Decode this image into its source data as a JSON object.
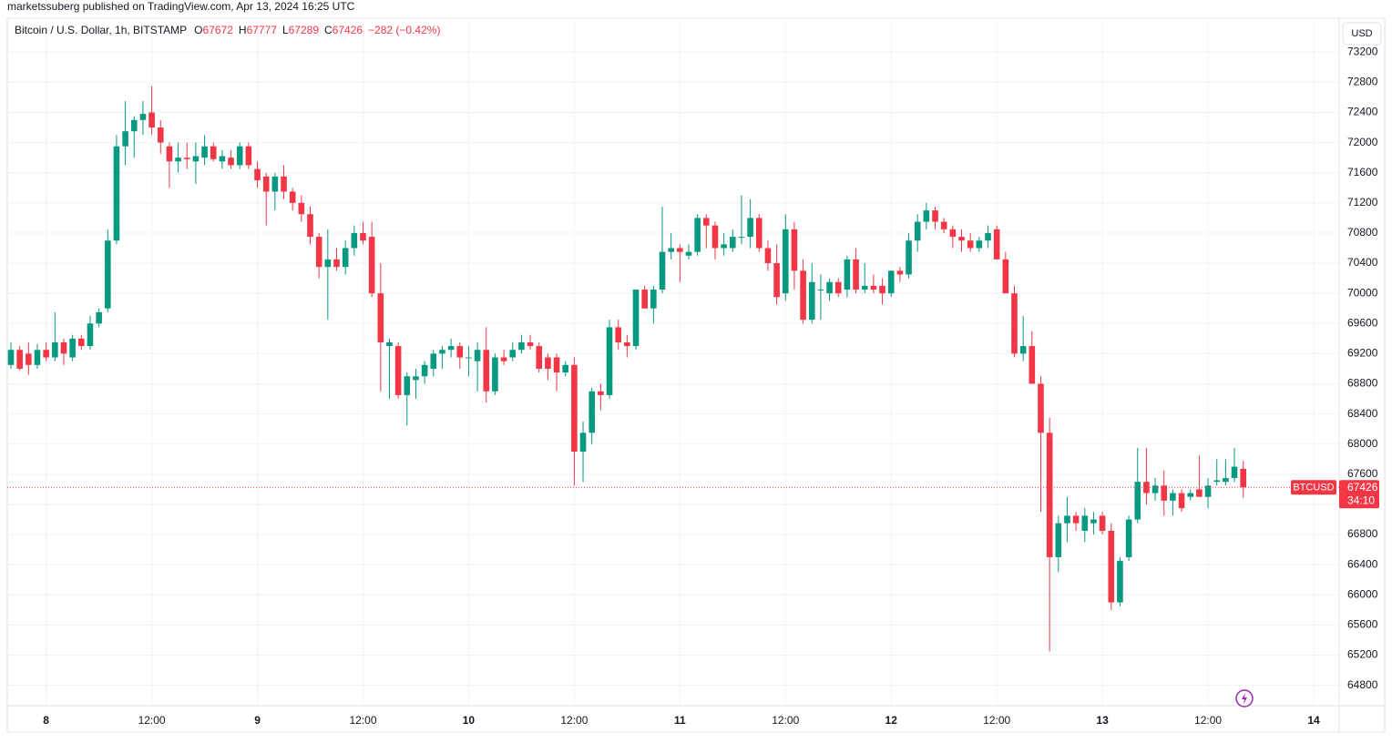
{
  "header": {
    "text": "marketssuberg published on TradingView.com, Apr 13, 2024 16:25 UTC"
  },
  "chart_data": {
    "type": "candlestick",
    "title": "Bitcoin / U.S. Dollar, 1h, BITSTAMP",
    "ohlc_keys": [
      "O",
      "H",
      "L",
      "C"
    ],
    "change_label": "−282 (−0.42%)",
    "currency": "USD",
    "up_color": "#089981",
    "down_color": "#f23645",
    "grid": true,
    "ylim": [
      64530,
      73650
    ],
    "yticks": [
      64800,
      65200,
      65600,
      66000,
      66400,
      66800,
      67200,
      67600,
      68000,
      68400,
      68800,
      69200,
      69600,
      70000,
      70400,
      70800,
      71200,
      71600,
      72000,
      72400,
      72800,
      73200
    ],
    "last_price": {
      "symbol": "BTCUSD",
      "countdown": "34:10"
    },
    "categories": [
      null,
      null,
      null,
      null,
      "8",
      null,
      null,
      null,
      null,
      null,
      null,
      null,
      null,
      null,
      null,
      null,
      "12:00",
      null,
      null,
      null,
      null,
      null,
      null,
      null,
      null,
      null,
      null,
      null,
      "9",
      null,
      null,
      null,
      null,
      null,
      null,
      null,
      null,
      null,
      null,
      null,
      "12:00",
      null,
      null,
      null,
      null,
      null,
      null,
      null,
      null,
      null,
      null,
      null,
      "10",
      null,
      null,
      null,
      null,
      null,
      null,
      null,
      null,
      null,
      null,
      null,
      "12:00",
      null,
      null,
      null,
      null,
      null,
      null,
      null,
      null,
      null,
      null,
      null,
      "11",
      null,
      null,
      null,
      null,
      null,
      null,
      null,
      null,
      null,
      null,
      null,
      "12:00",
      null,
      null,
      null,
      null,
      null,
      null,
      null,
      null,
      null,
      null,
      null,
      "12",
      null,
      null,
      null,
      null,
      null,
      null,
      null,
      null,
      null,
      null,
      null,
      "12:00",
      null,
      null,
      null,
      null,
      null,
      null,
      null,
      null,
      null,
      null,
      null,
      "13",
      null,
      null,
      null,
      null,
      null,
      null,
      null,
      null,
      null,
      null,
      null,
      "12:00",
      null,
      null,
      null,
      null,
      null,
      null,
      null,
      null,
      null,
      null,
      null,
      "14"
    ],
    "open": [
      69050,
      69250,
      69200,
      69050,
      69250,
      69150,
      69350,
      69150,
      69400,
      69300,
      69600,
      69800,
      70700,
      71950,
      72150,
      72300,
      72400,
      72200,
      71950,
      71750,
      71800,
      71750,
      71800,
      71950,
      71750,
      71800,
      71700,
      71950,
      71650,
      71550,
      71350,
      71550,
      71350,
      71200,
      71050,
      70750,
      70350,
      70450,
      70350,
      70600,
      70800,
      70750,
      70000,
      69300,
      69300,
      68650,
      68850,
      68900,
      69000,
      69200,
      69250,
      69300,
      69150,
      69100,
      69250,
      68700,
      69150,
      69150,
      69250,
      69350,
      69300,
      69150,
      69150,
      68950,
      69050,
      67900,
      68150,
      68700,
      68650,
      69550,
      69350,
      69300,
      70050,
      69800,
      70050,
      70550,
      70600,
      70500,
      70550,
      71000,
      70900,
      70600,
      70600,
      70750,
      70750,
      71000,
      70600,
      70400,
      70000,
      70850,
      70300,
      69650,
      70050,
      70000,
      70150,
      70050,
      70450,
      70050,
      70100,
      70100,
      70000,
      70300,
      70250,
      70700,
      70950,
      71100,
      70950,
      70850,
      70750,
      70700,
      70600,
      70700,
      70850,
      70450,
      70000,
      69200,
      69300,
      68800,
      68150,
      66500,
      66950,
      67050,
      66850,
      66950,
      67050,
      66850,
      65900,
      66500,
      67000,
      67500,
      67350,
      67450,
      67250,
      67350,
      67300,
      67400,
      67300,
      67500,
      67500,
      67550,
      67672,
      null,
      null,
      null,
      null,
      null,
      null,
      null,
      null
    ],
    "high": [
      69350,
      69300,
      69350,
      69330,
      69350,
      69750,
      69400,
      69450,
      69450,
      69700,
      69800,
      70850,
      72100,
      72550,
      72350,
      72550,
      72750,
      72300,
      72000,
      72000,
      72000,
      72000,
      72100,
      72000,
      71900,
      71900,
      72000,
      72000,
      71750,
      71600,
      71600,
      71700,
      71400,
      71300,
      71150,
      70800,
      70850,
      70600,
      70700,
      70900,
      70950,
      70950,
      70400,
      69400,
      69350,
      68950,
      69000,
      69100,
      69250,
      69300,
      69400,
      69350,
      69300,
      69350,
      69550,
      69200,
      69250,
      69350,
      69450,
      69450,
      69350,
      69200,
      69200,
      69100,
      69150,
      68300,
      68750,
      68800,
      69650,
      69650,
      69450,
      70050,
      70100,
      70100,
      71150,
      70800,
      70650,
      70650,
      71050,
      71050,
      70950,
      70800,
      70850,
      71300,
      71250,
      71050,
      70700,
      70650,
      71050,
      70950,
      70450,
      70400,
      70250,
      70200,
      70200,
      70500,
      70600,
      70400,
      70250,
      70200,
      70300,
      70350,
      70800,
      71050,
      71200,
      71150,
      71000,
      70900,
      70850,
      70800,
      70750,
      70900,
      70900,
      70550,
      70100,
      69700,
      69500,
      68900,
      68350,
      67050,
      67300,
      67100,
      67150,
      67100,
      67100,
      66950,
      66500,
      67050,
      67950,
      67950,
      67550,
      67650,
      67400,
      67400,
      67400,
      67850,
      67550,
      67800,
      67800,
      67950,
      67777,
      null,
      null,
      null,
      null,
      null,
      null,
      null,
      null
    ],
    "low": [
      69000,
      68980,
      68920,
      69000,
      69100,
      69100,
      69050,
      69100,
      69250,
      69250,
      69550,
      69750,
      70650,
      71700,
      71800,
      72100,
      72100,
      71850,
      71400,
      71600,
      71650,
      71450,
      71700,
      71750,
      71650,
      71650,
      71650,
      71650,
      71400,
      70900,
      71100,
      71250,
      71100,
      70950,
      70650,
      70200,
      69650,
      70300,
      70250,
      70500,
      70650,
      69950,
      68700,
      68600,
      68600,
      68250,
      68600,
      68800,
      68900,
      69000,
      69150,
      69000,
      68900,
      68700,
      68550,
      68650,
      69050,
      69100,
      69200,
      69250,
      68950,
      68850,
      68700,
      68900,
      67450,
      67500,
      68000,
      68450,
      68600,
      69250,
      69150,
      69250,
      69800,
      69600,
      70000,
      70450,
      70150,
      70450,
      70500,
      70600,
      70450,
      70500,
      70550,
      70650,
      70600,
      70550,
      70300,
      69850,
      69900,
      70050,
      69600,
      69600,
      69650,
      69900,
      69950,
      69950,
      70000,
      70000,
      70000,
      69850,
      69950,
      70150,
      70200,
      70550,
      70850,
      70850,
      70800,
      70600,
      70550,
      70550,
      70550,
      70600,
      70450,
      70000,
      69150,
      69100,
      68800,
      67100,
      65250,
      66300,
      66700,
      66850,
      66700,
      66800,
      66800,
      65800,
      65850,
      66450,
      66950,
      67200,
      67250,
      67050,
      67050,
      67100,
      67250,
      67300,
      67150,
      67450,
      67450,
      67500,
      67289,
      null,
      null,
      null,
      null,
      null,
      null,
      null,
      null
    ],
    "close": [
      69250,
      69000,
      69050,
      69250,
      69150,
      69350,
      69200,
      69400,
      69300,
      69600,
      69750,
      70700,
      71950,
      72150,
      72300,
      72380,
      72200,
      72000,
      71750,
      71800,
      71780,
      71820,
      71950,
      71780,
      71820,
      71700,
      71950,
      71700,
      71500,
      71350,
      71550,
      71350,
      71200,
      71050,
      70750,
      70350,
      70450,
      70350,
      70600,
      70800,
      70700,
      70000,
      69350,
      69350,
      68650,
      68900,
      68900,
      69050,
      69200,
      69250,
      69300,
      69150,
      69150,
      69250,
      68700,
      69150,
      69100,
      69250,
      69350,
      69300,
      69000,
      69000,
      68950,
      69050,
      67900,
      68150,
      68700,
      68650,
      69550,
      69350,
      69300,
      70050,
      69800,
      70050,
      70550,
      70600,
      70550,
      70550,
      71000,
      70900,
      70600,
      70650,
      70750,
      70750,
      71000,
      70600,
      70400,
      69950,
      70850,
      70300,
      69650,
      70150,
      70050,
      70150,
      70000,
      70450,
      70050,
      70100,
      70050,
      70000,
      70300,
      70250,
      70700,
      70950,
      71100,
      70950,
      70850,
      70750,
      70700,
      70600,
      70700,
      70800,
      70450,
      70000,
      69200,
      69300,
      68800,
      68150,
      66500,
      66950,
      67050,
      66950,
      67050,
      67000,
      66850,
      65900,
      66450,
      67000,
      67500,
      67350,
      67450,
      67250,
      67350,
      67150,
      67350,
      67300,
      67450,
      67520,
      67550,
      67700,
      67426,
      null,
      null,
      null,
      null,
      null,
      null,
      null,
      null
    ]
  }
}
